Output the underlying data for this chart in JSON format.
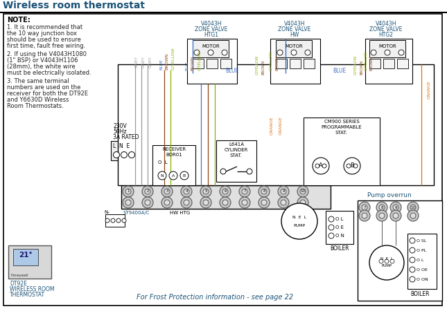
{
  "title": "Wireless room thermostat",
  "title_color": "#1a5276",
  "bg": "#ffffff",
  "black": "#000000",
  "grey_text": "#808080",
  "blue_text": "#1a5276",
  "orange_text": "#d4720a",
  "wire_grey": "#999999",
  "wire_blue": "#4472c4",
  "wire_brown": "#8b4513",
  "wire_orange": "#e07010",
  "wire_gyellow": "#8db000",
  "note_title": "NOTE:",
  "note_lines": [
    "1. It is recommended that",
    "the 10 way junction box",
    "should be used to ensure",
    "first time, fault free wiring.",
    "",
    "2. If using the V4043H1080",
    "(1\" BSP) or V4043H1106",
    "(28mm), the white wire",
    "must be electrically isolated.",
    "",
    "3. The same terminal",
    "numbers are used on the",
    "receiver for both the DT92E",
    "and Y6630D Wireless",
    "Room Thermostats."
  ],
  "frost_text": "For Frost Protection information - see page 22"
}
